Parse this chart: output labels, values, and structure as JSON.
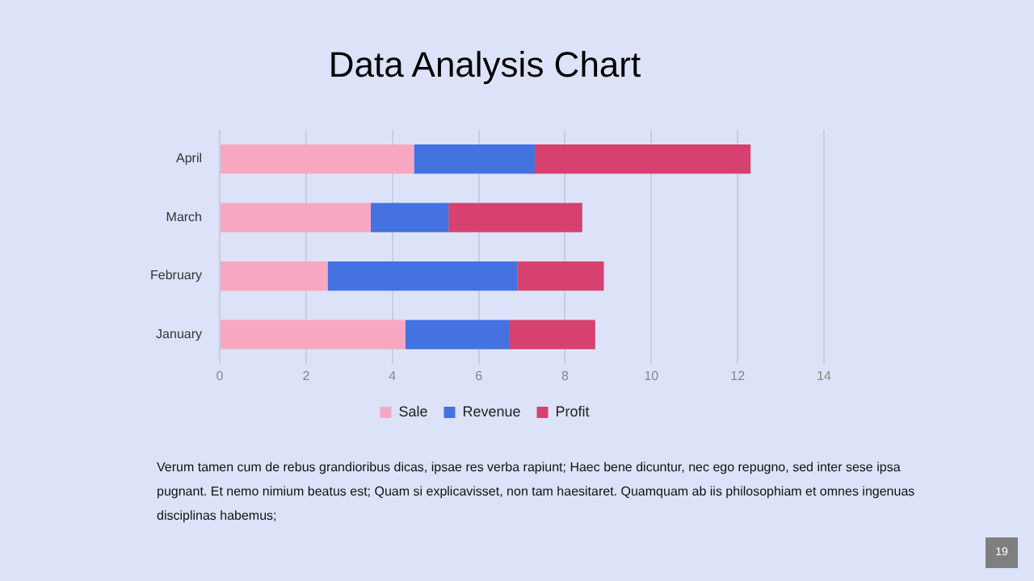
{
  "chart_data": {
    "type": "bar",
    "orientation": "horizontal",
    "stacked": true,
    "title": "Data Analysis Chart",
    "categories": [
      "April",
      "March",
      "February",
      "January"
    ],
    "series": [
      {
        "name": "Sale",
        "color": "#f7a8c0",
        "values": [
          4.5,
          3.5,
          2.5,
          4.3
        ]
      },
      {
        "name": "Revenue",
        "color": "#4472e0",
        "values": [
          2.8,
          1.8,
          4.4,
          2.4
        ]
      },
      {
        "name": "Profit",
        "color": "#d6416f",
        "values": [
          5,
          3.1,
          2,
          2
        ]
      }
    ],
    "xlim": [
      0,
      14
    ],
    "xticks": [
      0,
      2,
      4,
      6,
      8,
      10,
      12,
      14
    ],
    "grid": "x",
    "legend": "bottom",
    "annotations": [
      "Verum tamen cum de rebus grandioribus dicas, ipsae res verba rapiunt;  Haec bene dicuntur,  nec ego repugno,  sed inter sese ipsa pugnant.  Et nemo nimium beatus est; Quam si explicavisset,  non tam haesitaret.  Quamquam  ab iis philosophiam et omnes ingenuas  disciplinas habemus;",
      "19"
    ]
  }
}
